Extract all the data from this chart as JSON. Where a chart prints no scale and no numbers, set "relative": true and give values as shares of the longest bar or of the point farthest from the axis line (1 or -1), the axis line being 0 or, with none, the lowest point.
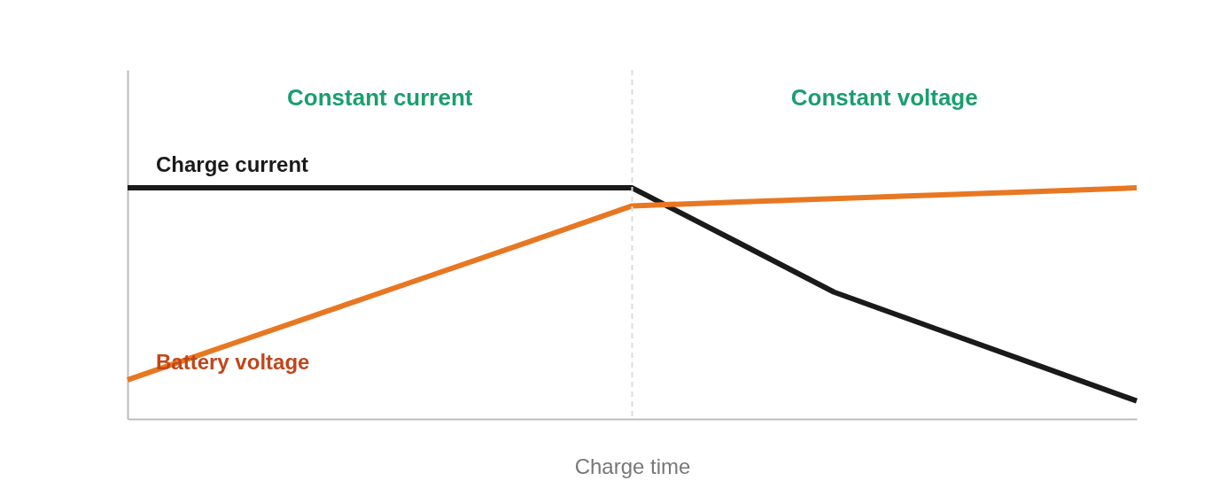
{
  "chart_data": {
    "type": "line",
    "relative": true,
    "xlabel": "Charge time",
    "marker": "none",
    "line_style": "solid",
    "categories": [
      null,
      null,
      null,
      null,
      null,
      null,
      null,
      null,
      null,
      null,
      null
    ],
    "series": [
      {
        "name": "Charge current",
        "color": "#1a1a1a",
        "values": [
          1,
          1,
          1,
          1,
          1,
          1,
          0.775,
          0.549,
          0.392,
          0.235,
          0.078
        ]
      },
      {
        "name": "Battery voltage",
        "color": "#e87722",
        "values": [
          0.169,
          0.32,
          0.47,
          0.62,
          0.77,
          0.922,
          0.938,
          0.953,
          0.969,
          0.984,
          1
        ]
      }
    ],
    "annotations": [
      "Constant current",
      "Constant voltage"
    ]
  }
}
